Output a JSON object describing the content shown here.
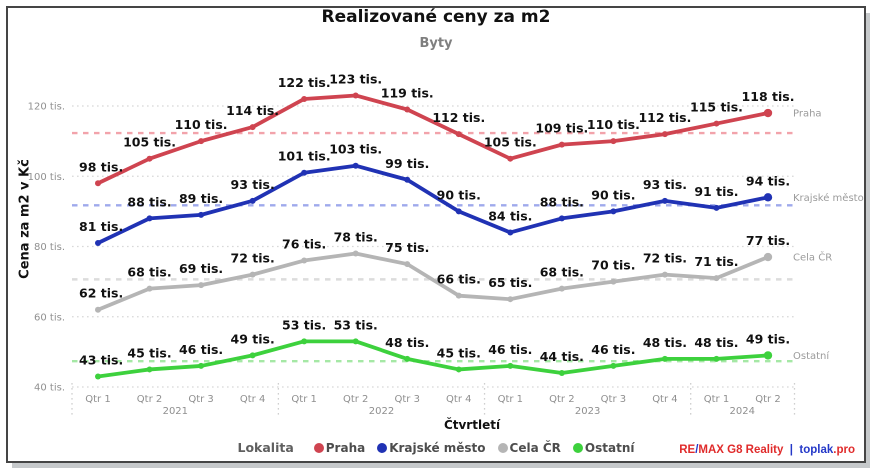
{
  "title": "Realizované ceny za m2",
  "subtitle": "Byty",
  "chart_data": {
    "type": "line",
    "categories": [
      "Qtr 1",
      "Qtr 2",
      "Qtr 3",
      "Qtr 4",
      "Qtr 1",
      "Qtr 2",
      "Qtr 3",
      "Qtr 4",
      "Qtr 1",
      "Qtr 2",
      "Qtr 3",
      "Qtr 4",
      "Qtr 1",
      "Qtr 2"
    ],
    "year_groups": [
      {
        "label": "2021",
        "from": 0,
        "to": 3
      },
      {
        "label": "2022",
        "from": 4,
        "to": 7
      },
      {
        "label": "2023",
        "from": 8,
        "to": 11
      },
      {
        "label": "2024",
        "from": 12,
        "to": 13
      }
    ],
    "series": [
      {
        "name": "Praha",
        "color": "#cf4450",
        "mean_color": "#f2a3ab",
        "values": [
          98,
          105,
          110,
          114,
          122,
          123,
          119,
          112,
          105,
          109,
          110,
          112,
          115,
          118
        ]
      },
      {
        "name": "Krajské město",
        "color": "#2032b4",
        "mean_color": "#9fa9ec",
        "values": [
          81,
          88,
          89,
          93,
          101,
          103,
          99,
          90,
          84,
          88,
          90,
          93,
          91,
          94
        ]
      },
      {
        "name": "Cela ČR",
        "color": "#b5b5b5",
        "mean_color": "#dcdcdc",
        "values": [
          62,
          68,
          69,
          72,
          76,
          78,
          75,
          66,
          65,
          68,
          70,
          72,
          71,
          77
        ]
      },
      {
        "name": "Ostatní",
        "color": "#3dd13d",
        "mean_color": "#a5e8a5",
        "values": [
          43,
          45,
          46,
          49,
          53,
          53,
          48,
          45,
          46,
          44,
          46,
          48,
          48,
          49
        ]
      }
    ],
    "value_suffix": " tis.",
    "xlabel": "Čtvrtletí",
    "ylabel": "Cena za m2 v Kč",
    "y_ticks": [
      40,
      60,
      80,
      100,
      120
    ],
    "ylim": [
      40,
      125
    ],
    "grid": "dotted horizontal at ticks",
    "legend_title": "Lokalita",
    "legend_position": "bottom",
    "show_mean_lines": true
  },
  "footer_parts": [
    {
      "text": "RE",
      "color": "#e02b2b"
    },
    {
      "text": "/",
      "color": "#2438c8"
    },
    {
      "text": "MAX G8 Reality",
      "color": "#e02b2b"
    },
    {
      "text": "  |  ",
      "color": "#2438c8"
    },
    {
      "text": "toplak",
      "color": "#2438c8"
    },
    {
      "text": ".pro",
      "color": "#e02b2b"
    }
  ]
}
